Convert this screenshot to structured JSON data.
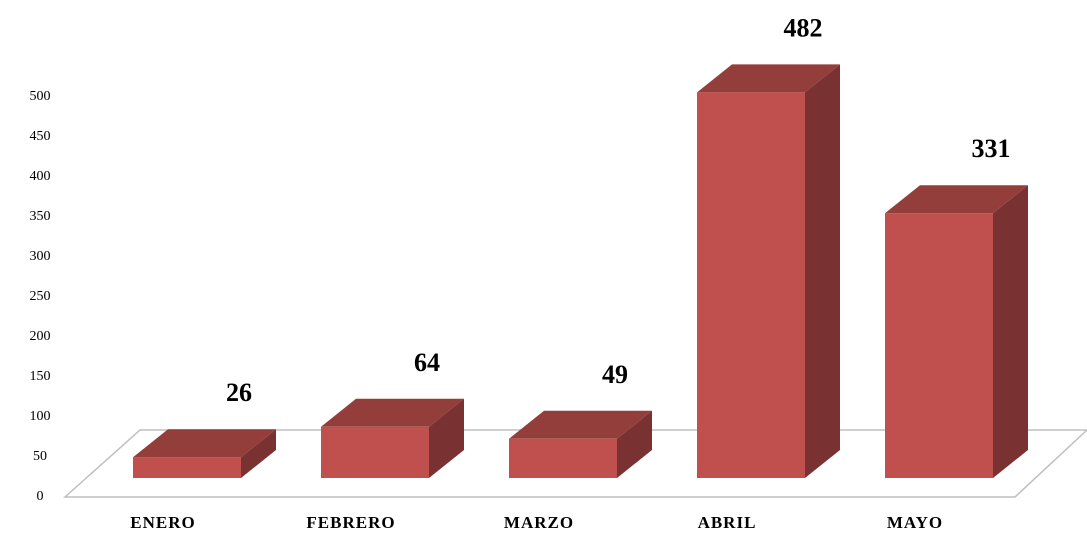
{
  "chart_data": {
    "type": "bar",
    "categories": [
      "ENERO",
      "FEBRERO",
      "MARZO",
      "ABRIL",
      "MAYO"
    ],
    "values": [
      26,
      64,
      49,
      482,
      331
    ],
    "color": "#c0504d",
    "ylim": [
      0,
      500
    ],
    "yticks": [
      0,
      50,
      100,
      150,
      200,
      250,
      300,
      350,
      400,
      450,
      500
    ]
  }
}
